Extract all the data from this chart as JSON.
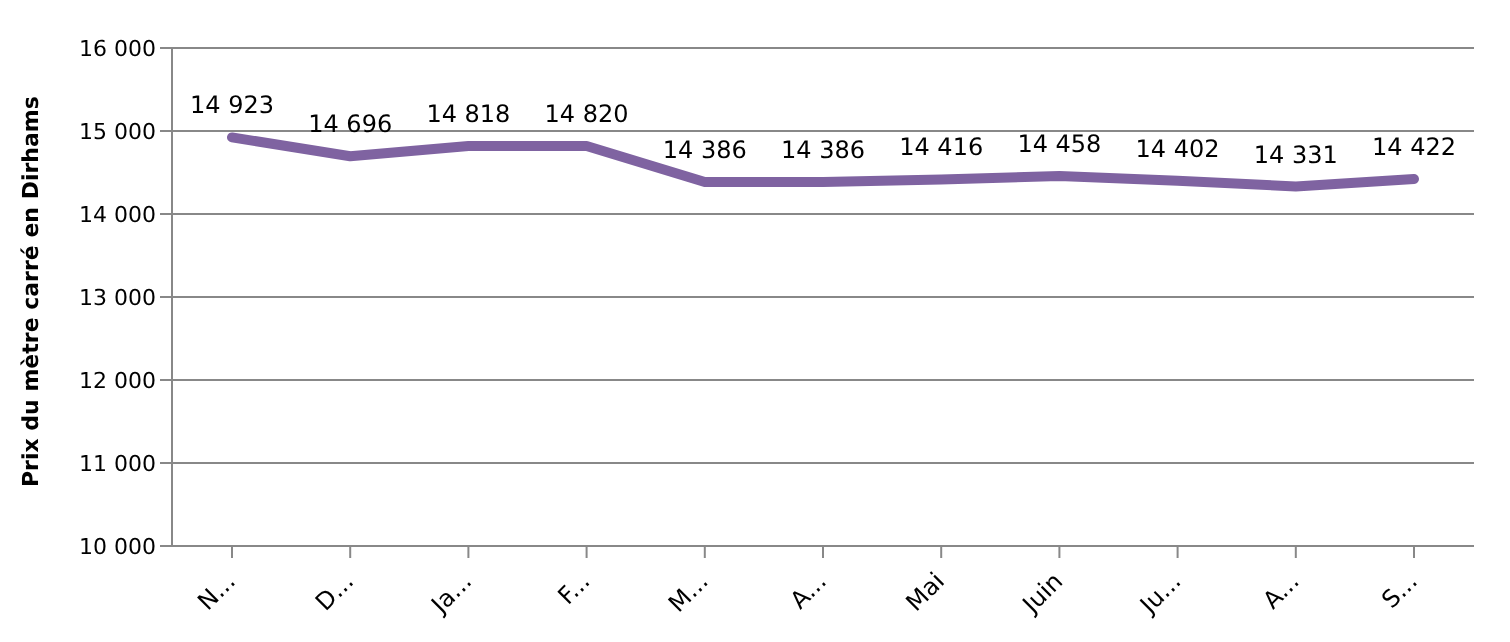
{
  "chart_data": {
    "type": "line",
    "ylabel": "Prix du mètre carré en Dirhams",
    "categories": [
      "N...",
      "D...",
      "Ja...",
      "F...",
      "M...",
      "A...",
      "Mai",
      "Juin",
      "Ju...",
      "A...",
      "S..."
    ],
    "series": [
      {
        "color": "#7f63a1",
        "values": [
          14923,
          14696,
          14818,
          14820,
          14386,
          14386,
          14416,
          14458,
          14402,
          14331,
          14422
        ],
        "value_labels": [
          "14 923",
          "14 696",
          "14 818",
          "14 820",
          "14 386",
          "14 386",
          "14 416",
          "14 458",
          "14 402",
          "14 331",
          "14 422"
        ]
      }
    ],
    "ylim": [
      10000,
      16000
    ],
    "yticks": [
      {
        "value": 10000,
        "label": "10 000"
      },
      {
        "value": 11000,
        "label": "11 000"
      },
      {
        "value": 12000,
        "label": "12 000"
      },
      {
        "value": 13000,
        "label": "13 000"
      },
      {
        "value": 14000,
        "label": "14 000"
      },
      {
        "value": 15000,
        "label": "15 000"
      },
      {
        "value": 16000,
        "label": "16 000"
      }
    ],
    "grid": "y",
    "legend": false,
    "marker": "none",
    "line_style": "solid"
  }
}
